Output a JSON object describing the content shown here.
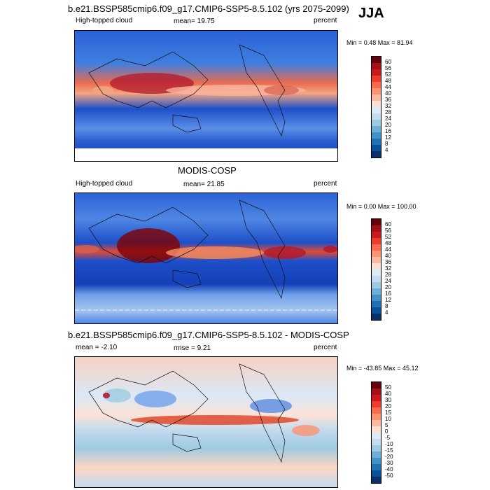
{
  "season": "JJA",
  "panels": [
    {
      "title": "b.e21.BSSP585cmip6.f09_g17.CMIP6-SSP5-8.5.102 (yrs 2075-2099)",
      "left_label": "High-topped cloud",
      "center_label": "mean=  19.75",
      "right_label": "percent",
      "stats": "Min =   0.48 Max =  81.94",
      "colorbar_ticks": [
        "60",
        "56",
        "52",
        "48",
        "44",
        "40",
        "36",
        "32",
        "28",
        "24",
        "20",
        "16",
        "12",
        "8",
        "4"
      ]
    },
    {
      "title": "MODIS-COSP",
      "left_label": "High-topped cloud",
      "center_label": "mean=  21.85",
      "right_label": "percent",
      "stats": "Min =   0.00 Max = 100.00",
      "colorbar_ticks": [
        "60",
        "56",
        "52",
        "48",
        "44",
        "40",
        "36",
        "32",
        "28",
        "24",
        "20",
        "16",
        "12",
        "8",
        "4"
      ]
    },
    {
      "title": "b.e21.BSSP585cmip6.f09_g17.CMIP6-SSP5-8.5.102 - MODIS-COSP",
      "left_label": "mean =  -2.10",
      "center_label": "rmse =   9.21",
      "right_label": "percent",
      "stats": "Min = -43.85 Max =  45.12",
      "colorbar_ticks": [
        "50",
        "40",
        "30",
        "20",
        "15",
        "10",
        "5",
        "0",
        "-5",
        "-10",
        "-15",
        "-20",
        "-30",
        "-40",
        "-50"
      ]
    }
  ],
  "colors": {
    "abs_scale": [
      "#67000d",
      "#a50f15",
      "#cb181d",
      "#ef3b2c",
      "#fb6a4a",
      "#fc9272",
      "#fcbba1",
      "#fee0d2",
      "#deebf7",
      "#c6dbef",
      "#9ecae1",
      "#6baed6",
      "#4292c6",
      "#2171b5",
      "#08519c",
      "#08306b"
    ],
    "diff_scale": [
      "#67000d",
      "#a50f15",
      "#cb181d",
      "#ef3b2c",
      "#fb6a4a",
      "#fc9272",
      "#fcbba1",
      "#fee0d2",
      "#deebf7",
      "#c6dbef",
      "#9ecae1",
      "#6baed6",
      "#4292c6",
      "#2171b5",
      "#08519c",
      "#08306b"
    ]
  }
}
